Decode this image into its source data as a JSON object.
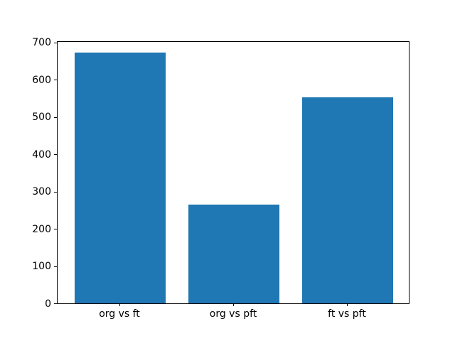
{
  "chart_data": {
    "type": "bar",
    "categories": [
      "org vs ft",
      "org vs pft",
      "ft vs pft"
    ],
    "values": [
      672,
      265,
      553
    ],
    "bar_color": "#1f77b4",
    "ylim": [
      0,
      705.6
    ],
    "yticks": [
      0,
      100,
      200,
      300,
      400,
      500,
      600,
      700
    ],
    "grid": false
  }
}
